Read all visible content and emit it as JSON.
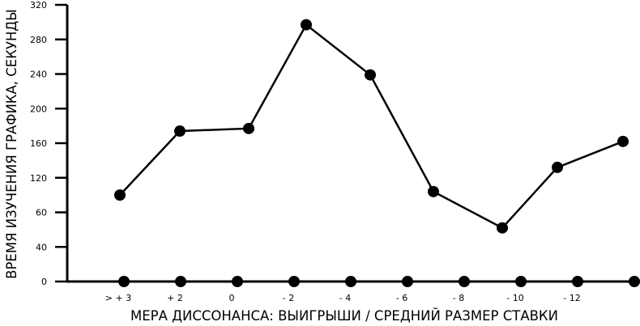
{
  "chart_data": {
    "type": "line",
    "title": "",
    "xlabel": "МЕРА ДИССОНАНСА: ВЫИГРЫШИ / СРЕДНИЙ РАЗМЕР СТАВКИ",
    "ylabel": "ВРЕМЯ ИЗУЧЕНИЯ ГРАФИКА, СЕКУНДЫ",
    "ylim": [
      0,
      320
    ],
    "y_ticks": [
      "0",
      "40",
      "60",
      "120",
      "160",
      "200",
      "240",
      "280",
      "320"
    ],
    "categories": [
      "> + 3",
      "+ 2",
      "0",
      "- 2",
      "- 4",
      "- 6",
      "- 8",
      "- 10",
      "- 12"
    ],
    "values": [
      100,
      174,
      177,
      297,
      239,
      104,
      62,
      132,
      162
    ],
    "grid": false,
    "color": "#000000"
  }
}
